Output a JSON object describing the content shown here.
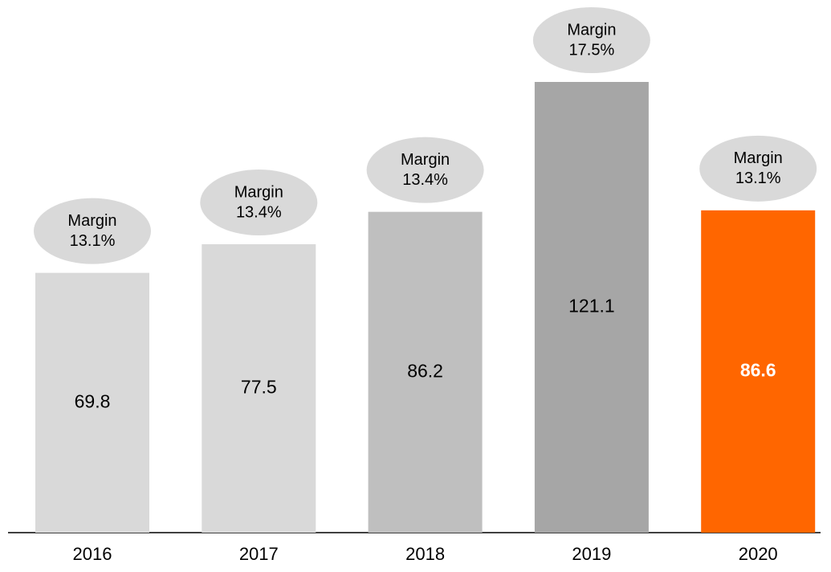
{
  "chart_data": {
    "type": "bar",
    "categories": [
      "2016",
      "2017",
      "2018",
      "2019",
      "2020"
    ],
    "values": [
      69.8,
      77.5,
      86.2,
      121.1,
      86.6
    ],
    "colors": [
      "#d9d9d9",
      "#d9d9d9",
      "#bfbfbf",
      "#a6a6a6",
      "#ff6600"
    ],
    "value_label_colors": [
      "#000000",
      "#000000",
      "#000000",
      "#000000",
      "#ffffff"
    ],
    "annotation_title": "Margin",
    "annotations": [
      "13.1%",
      "13.4%",
      "13.4%",
      "17.5%",
      "13.1%"
    ]
  }
}
